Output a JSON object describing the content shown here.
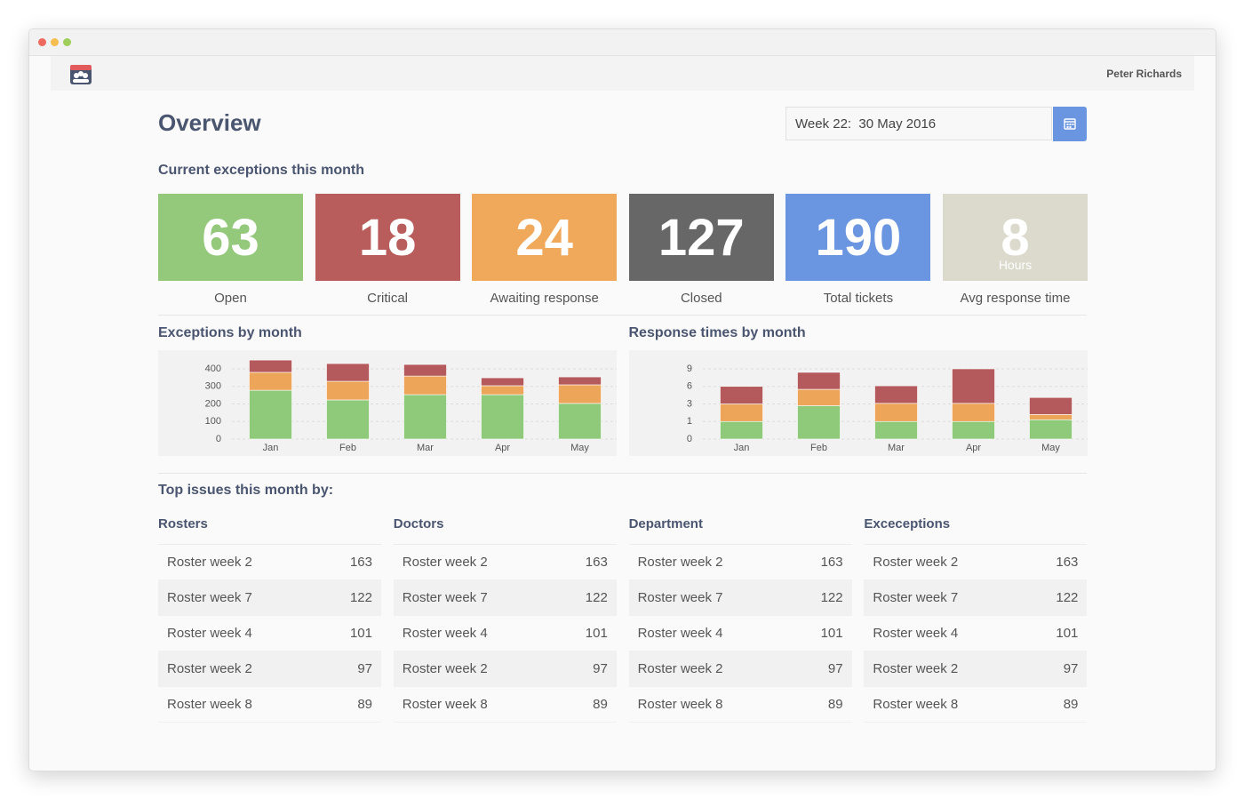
{
  "header": {
    "user": "Peter Richards"
  },
  "title": "Overview",
  "date_picker": "Week 22:  30 May 2016",
  "exceptions": {
    "title": "Current exceptions this month",
    "tiles": [
      {
        "value": 63,
        "label": "Open",
        "color": "#94c97c"
      },
      {
        "value": 18,
        "label": "Critical",
        "color": "#b95c5c"
      },
      {
        "value": 24,
        "label": "Awaiting response",
        "color": "#f0a95a"
      },
      {
        "value": 127,
        "label": "Closed",
        "color": "#676767"
      },
      {
        "value": 190,
        "label": "Total tickets",
        "color": "#6a95e0"
      },
      {
        "value": 8,
        "unit": "Hours",
        "label": "Avg response time",
        "color": "#dcd9cd"
      }
    ]
  },
  "charts": [
    {
      "type": "bar",
      "stacked": true,
      "title": "Exceptions by month",
      "categories": [
        "Jan",
        "Feb",
        "Mar",
        "Apr",
        "May"
      ],
      "series": [
        {
          "color": "#8fc97a",
          "values": [
            278,
            223,
            253,
            253,
            203
          ]
        },
        {
          "color": "#eda55a",
          "values": [
            102,
            106,
            106,
            51,
            106
          ]
        },
        {
          "color": "#b55a5c",
          "values": [
            70,
            101,
            66,
            45,
            45
          ]
        }
      ],
      "ylim": [
        0,
        470
      ],
      "yticks": [
        0,
        100,
        200,
        300,
        400
      ],
      "grid": true
    },
    {
      "type": "bar",
      "stacked": true,
      "title": "Response times by month",
      "categories": [
        "Jan",
        "Feb",
        "Mar",
        "Apr",
        "May"
      ],
      "series": [
        {
          "color": "#8fc97a",
          "values": [
            1,
            2.8,
            1,
            1,
            1.2
          ]
        },
        {
          "color": "#eda55a",
          "values": [
            2,
            2.7,
            2.1,
            2.1,
            0.6
          ]
        },
        {
          "color": "#b55a5c",
          "values": [
            3,
            2.9,
            3,
            5.9,
            2.3
          ]
        }
      ],
      "ylim": [
        0,
        9
      ],
      "yticks": [
        0,
        1,
        3,
        6,
        9
      ],
      "grid": true
    }
  ],
  "top_issues": {
    "title": "Top issues this month by:",
    "tables": [
      {
        "title": "Rosters",
        "rows": [
          [
            "Roster week 2",
            163
          ],
          [
            "Roster week 7",
            122
          ],
          [
            "Roster week 4",
            101
          ],
          [
            "Roster week 2",
            97
          ],
          [
            "Roster week 8",
            89
          ]
        ]
      },
      {
        "title": "Doctors",
        "rows": [
          [
            "Roster week 2",
            163
          ],
          [
            "Roster week 7",
            122
          ],
          [
            "Roster week 4",
            101
          ],
          [
            "Roster week 2",
            97
          ],
          [
            "Roster week 8",
            89
          ]
        ]
      },
      {
        "title": "Department",
        "rows": [
          [
            "Roster week 2",
            163
          ],
          [
            "Roster week 7",
            122
          ],
          [
            "Roster week 4",
            101
          ],
          [
            "Roster week 2",
            97
          ],
          [
            "Roster week 8",
            89
          ]
        ]
      },
      {
        "title": "Exceceptions",
        "rows": [
          [
            "Roster week 2",
            163
          ],
          [
            "Roster week 7",
            122
          ],
          [
            "Roster week 4",
            101
          ],
          [
            "Roster week 2",
            97
          ],
          [
            "Roster week 8",
            89
          ]
        ]
      }
    ]
  }
}
